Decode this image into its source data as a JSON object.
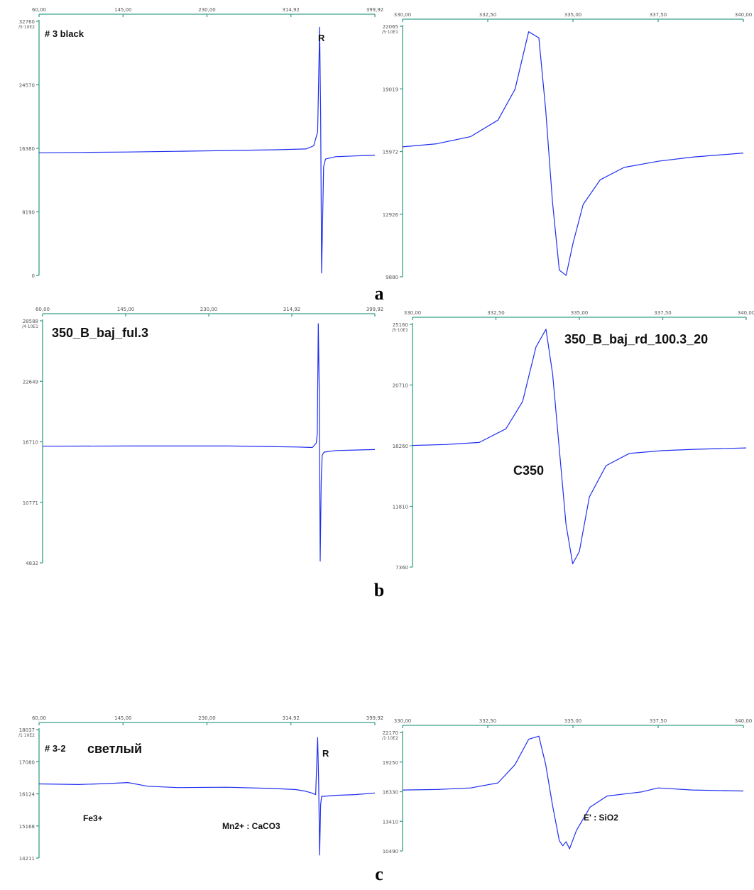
{
  "colors": {
    "axis": "#3aa08a",
    "trace": "#1f2ff0",
    "text": "#111111"
  },
  "panel_letters": [
    "a",
    "b",
    "c"
  ],
  "chart_data": [
    {
      "id": "a-left",
      "type": "line",
      "x_ticks": [
        "60,00",
        "145,00",
        "230,00",
        "314,92",
        "399,92"
      ],
      "xlim": [
        60,
        399.92
      ],
      "y_ticks": [
        "32760",
        "24570",
        "16380",
        "8190",
        "0"
      ],
      "y_unit": "/5·10E2",
      "ylim": [
        0,
        32760
      ],
      "annotations": [
        "# 3 black",
        "R"
      ],
      "series": [
        {
          "x": [
            60,
            100,
            150,
            200,
            250,
            300,
            330,
            338,
            342,
            344,
            345,
            346,
            348,
            350,
            360,
            380,
            399.92
          ],
          "y": [
            15800,
            15850,
            15900,
            16000,
            16100,
            16200,
            16300,
            16700,
            18500,
            32000,
            21000,
            300,
            14000,
            15000,
            15300,
            15400,
            15500
          ]
        }
      ]
    },
    {
      "id": "a-right",
      "type": "line",
      "x_ticks": [
        "330,00",
        "332,50",
        "335,00",
        "337,50",
        "340,00"
      ],
      "xlim": [
        330,
        340
      ],
      "y_ticks": [
        "22065",
        "19019",
        "15972",
        "12926",
        "9880"
      ],
      "y_unit": "/5·10E1",
      "ylim": [
        9880,
        22065
      ],
      "annotations": [],
      "series": [
        {
          "x": [
            330,
            331,
            332,
            332.8,
            333.3,
            333.7,
            334,
            334.2,
            334.4,
            334.6,
            334.8,
            335,
            335.3,
            335.8,
            336.5,
            337.5,
            338.5,
            340
          ],
          "y": [
            16200,
            16350,
            16700,
            17500,
            19000,
            21800,
            21500,
            18000,
            13500,
            10200,
            9950,
            11500,
            13400,
            14600,
            15200,
            15500,
            15700,
            15900
          ]
        }
      ]
    },
    {
      "id": "b-left",
      "type": "line",
      "x_ticks": [
        "60,00",
        "145,00",
        "230,00",
        "314,92",
        "399,92"
      ],
      "xlim": [
        60,
        399.92
      ],
      "y_ticks": [
        "28588",
        "22649",
        "16710",
        "10771",
        "4832"
      ],
      "y_unit": "/4·10E1",
      "ylim": [
        4832,
        28588
      ],
      "annotations": [
        "350_B_baj_ful.3"
      ],
      "series": [
        {
          "x": [
            60,
            150,
            250,
            320,
            336,
            340,
            341,
            342,
            343,
            344,
            345,
            346,
            348,
            360,
            380,
            399.92
          ],
          "y": [
            16280,
            16300,
            16300,
            16200,
            16150,
            16600,
            17500,
            28300,
            22000,
            5000,
            12800,
            15400,
            15700,
            15850,
            15900,
            15950
          ]
        }
      ]
    },
    {
      "id": "b-right",
      "type": "line",
      "x_ticks": [
        "330,00",
        "332,50",
        "335,00",
        "337,50",
        "340,00"
      ],
      "xlim": [
        330,
        340
      ],
      "y_ticks": [
        "25160",
        "20710",
        "16260",
        "11810",
        "7360"
      ],
      "y_unit": "/5·10E1",
      "ylim": [
        7360,
        25160
      ],
      "annotations": [
        "350_B_baj_rd_100.3_20",
        "C350"
      ],
      "series": [
        {
          "x": [
            330,
            331,
            332,
            332.8,
            333.3,
            333.7,
            334,
            334.2,
            334.4,
            334.6,
            334.8,
            335,
            335.3,
            335.8,
            336.5,
            337.5,
            338.5,
            340
          ],
          "y": [
            16280,
            16350,
            16500,
            17500,
            19500,
            23500,
            24800,
            21500,
            16000,
            10500,
            7600,
            8500,
            12500,
            14800,
            15700,
            15900,
            16000,
            16100
          ]
        }
      ]
    },
    {
      "id": "c-left",
      "type": "line",
      "x_ticks": [
        "60,00",
        "145,00",
        "230,00",
        "314,92",
        "399,92"
      ],
      "xlim": [
        60,
        399.92
      ],
      "y_ticks": [
        "18037",
        "17080",
        "16124",
        "15168",
        "14211"
      ],
      "y_unit": "/1·10E2",
      "ylim": [
        14211,
        18037
      ],
      "annotations": [
        "# 3-2",
        "светлый",
        "R",
        "Fe3+",
        "Mn2+ : CaCO3"
      ],
      "series": [
        {
          "x": [
            60,
            100,
            130,
            150,
            170,
            200,
            250,
            300,
            320,
            330,
            336,
            340,
            342,
            343,
            344,
            345,
            346,
            348,
            360,
            380,
            399.92
          ],
          "y": [
            16420,
            16400,
            16430,
            16460,
            16350,
            16310,
            16320,
            16280,
            16250,
            16200,
            16150,
            16100,
            17800,
            16500,
            14300,
            15800,
            16050,
            16050,
            16080,
            16100,
            16150
          ]
        }
      ]
    },
    {
      "id": "c-right",
      "type": "line",
      "x_ticks": [
        "330,00",
        "332,50",
        "335,00",
        "337,50",
        "340,00"
      ],
      "xlim": [
        330,
        340
      ],
      "y_ticks": [
        "22170",
        "19250",
        "16330",
        "13410",
        "10490"
      ],
      "y_unit": "/1·10E2",
      "ylim": [
        10490,
        22170
      ],
      "annotations": [
        "E' : SiO2"
      ],
      "series": [
        {
          "x": [
            330,
            331,
            332,
            332.8,
            333.3,
            333.7,
            334,
            334.2,
            334.4,
            334.6,
            334.7,
            334.8,
            334.9,
            335.1,
            335.5,
            336,
            337,
            337.5,
            338.5,
            340
          ],
          "y": [
            16500,
            16550,
            16700,
            17200,
            19000,
            21500,
            21800,
            19000,
            15000,
            11500,
            11000,
            11400,
            10700,
            12500,
            14800,
            15900,
            16300,
            16700,
            16500,
            16400
          ]
        }
      ]
    }
  ]
}
